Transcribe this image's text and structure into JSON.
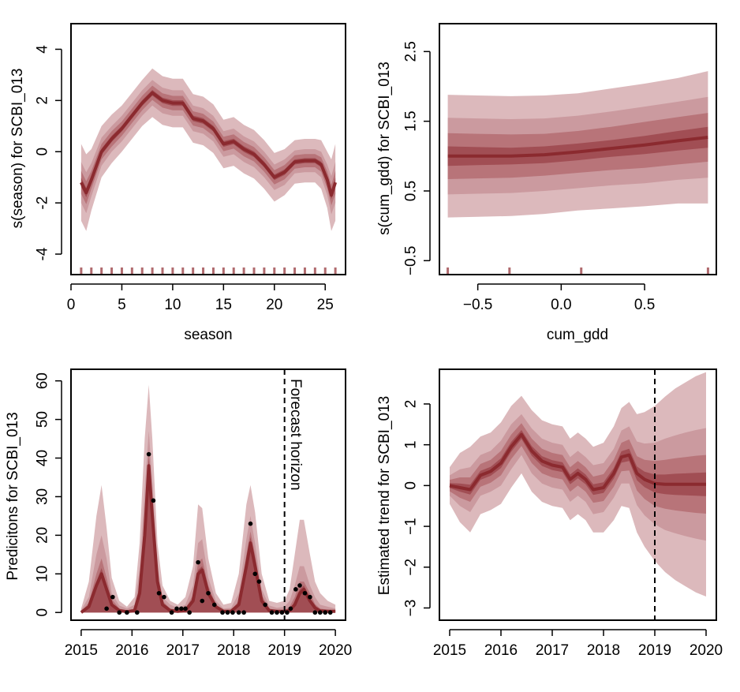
{
  "colors": {
    "band_outer": "#dcb9bc",
    "band_2": "#cb9a9f",
    "band_3": "#b87479",
    "band_inner": "#a14e54",
    "median_line": "#8b2a2f",
    "rug": "#b06a6e",
    "obs_points": "#000000"
  },
  "chart_data": [
    {
      "id": "season",
      "type": "area",
      "xlabel": "season",
      "ylabel": "s(season) for SCBI_013",
      "xlim": [
        0,
        27
      ],
      "ylim": [
        -4.8,
        5.0
      ],
      "xticks": [
        0,
        5,
        10,
        15,
        20,
        25
      ],
      "yticks": [
        -4,
        -2,
        0,
        2,
        4
      ],
      "x": [
        1,
        1.5,
        2,
        3,
        4,
        5,
        6,
        7,
        8,
        9,
        10,
        11,
        12,
        13,
        14,
        15,
        16,
        17,
        18,
        19,
        20,
        21,
        22,
        23,
        24,
        24.6,
        25.2,
        25.6,
        26
      ],
      "median": [
        -1.2,
        -1.6,
        -1.1,
        0.0,
        0.5,
        0.9,
        1.4,
        1.9,
        2.3,
        2.0,
        1.9,
        1.9,
        1.3,
        1.2,
        0.9,
        0.3,
        0.4,
        0.1,
        -0.1,
        -0.5,
        -1.0,
        -0.8,
        -0.4,
        -0.35,
        -0.35,
        -0.5,
        -1.1,
        -1.7,
        -1.2
      ],
      "halfwidths": [
        [
          1.5,
          1.5,
          1.2,
          1.0,
          0.95,
          0.9,
          0.9,
          0.9,
          0.95,
          0.95,
          0.95,
          0.95,
          0.95,
          0.95,
          0.95,
          0.95,
          0.95,
          0.95,
          0.95,
          0.95,
          0.95,
          0.9,
          0.85,
          0.85,
          0.85,
          0.95,
          1.1,
          1.4,
          1.5
        ],
        [
          0.8,
          0.8,
          0.65,
          0.55,
          0.5,
          0.5,
          0.5,
          0.5,
          0.5,
          0.5,
          0.5,
          0.5,
          0.5,
          0.5,
          0.5,
          0.5,
          0.5,
          0.5,
          0.5,
          0.5,
          0.5,
          0.5,
          0.45,
          0.45,
          0.45,
          0.5,
          0.6,
          0.75,
          0.8
        ],
        [
          0.45,
          0.45,
          0.35,
          0.3,
          0.3,
          0.28,
          0.28,
          0.28,
          0.28,
          0.28,
          0.28,
          0.28,
          0.28,
          0.28,
          0.28,
          0.28,
          0.28,
          0.28,
          0.28,
          0.28,
          0.28,
          0.28,
          0.26,
          0.26,
          0.26,
          0.28,
          0.33,
          0.4,
          0.45
        ],
        [
          0.18,
          0.18,
          0.14,
          0.12,
          0.12,
          0.11,
          0.11,
          0.11,
          0.11,
          0.11,
          0.11,
          0.11,
          0.11,
          0.11,
          0.11,
          0.11,
          0.11,
          0.11,
          0.11,
          0.11,
          0.11,
          0.11,
          0.1,
          0.1,
          0.1,
          0.11,
          0.13,
          0.16,
          0.18
        ]
      ],
      "rug": [
        1,
        2,
        3,
        4,
        5,
        6,
        7,
        8,
        9,
        10,
        11,
        12,
        13,
        14,
        15,
        16,
        17,
        18,
        19,
        20,
        21,
        22,
        23,
        24,
        25,
        26
      ]
    },
    {
      "id": "cum_gdd",
      "type": "area",
      "xlabel": "cum_gdd",
      "ylabel": "s(cum_gdd) for SCBI_013",
      "xlim": [
        -0.73,
        0.93
      ],
      "ylim": [
        -0.7,
        2.9
      ],
      "xticks": [
        -0.5,
        0.0,
        0.5
      ],
      "xticklabels": [
        "−0.5",
        "0.0",
        "0.5"
      ],
      "yticks": [
        -0.5,
        0.5,
        1.5,
        2.5
      ],
      "yticklabels": [
        "−0.5",
        "0.5",
        "1.5",
        "2.5"
      ],
      "x": [
        -0.68,
        -0.5,
        -0.3,
        -0.1,
        0.1,
        0.3,
        0.5,
        0.7,
        0.88
      ],
      "median": [
        1.0,
        1.0,
        1.0,
        1.02,
        1.06,
        1.11,
        1.16,
        1.22,
        1.27
      ],
      "halfwidths": [
        [
          0.88,
          0.87,
          0.86,
          0.85,
          0.84,
          0.86,
          0.88,
          0.9,
          0.95
        ],
        [
          0.55,
          0.54,
          0.53,
          0.52,
          0.52,
          0.53,
          0.55,
          0.56,
          0.58
        ],
        [
          0.33,
          0.32,
          0.31,
          0.3,
          0.3,
          0.31,
          0.33,
          0.34,
          0.35
        ],
        [
          0.14,
          0.13,
          0.12,
          0.12,
          0.12,
          0.12,
          0.13,
          0.14,
          0.15
        ]
      ],
      "rug": [
        -0.68,
        -0.31,
        0.12,
        0.88
      ]
    },
    {
      "id": "predictions",
      "type": "area",
      "xlabel": "",
      "ylabel": "Predicitons for SCBI_013",
      "annotation": "Forecast horizon",
      "vline": 2019.0,
      "xlim": [
        2014.8,
        2020.2
      ],
      "ylim": [
        -2,
        63
      ],
      "xticks": [
        2015,
        2016,
        2017,
        2018,
        2019,
        2020
      ],
      "yticks": [
        0,
        10,
        20,
        30,
        40,
        50,
        60
      ],
      "x": [
        2015.0,
        2015.15,
        2015.3,
        2015.4,
        2015.5,
        2015.6,
        2015.75,
        2015.9,
        2016.05,
        2016.15,
        2016.25,
        2016.33,
        2016.4,
        2016.5,
        2016.6,
        2016.75,
        2016.9,
        2017.05,
        2017.2,
        2017.3,
        2017.38,
        2017.5,
        2017.65,
        2017.8,
        2017.95,
        2018.1,
        2018.25,
        2018.33,
        2018.42,
        2018.55,
        2018.7,
        2018.85,
        2019.0,
        2019.1,
        2019.2,
        2019.3,
        2019.38,
        2019.5,
        2019.6,
        2019.7,
        2019.85,
        2020.0
      ],
      "median": [
        0,
        1.5,
        7,
        10,
        6,
        2,
        0.5,
        0.2,
        0.5,
        5,
        20,
        38,
        25,
        8,
        2,
        0.5,
        0.3,
        0.5,
        3,
        10,
        11,
        5,
        1.5,
        0.3,
        0.3,
        2,
        12,
        18,
        12,
        3,
        0.5,
        0.3,
        0.3,
        0.5,
        2,
        5,
        6,
        3,
        1.2,
        0.4,
        0.3,
        0.3
      ],
      "upper": [
        [
          1,
          8,
          25,
          33,
          22,
          9,
          3,
          1.5,
          4,
          18,
          45,
          59,
          45,
          18,
          7,
          3,
          2,
          4,
          12,
          28,
          27,
          14,
          5,
          2,
          2.5,
          10,
          28,
          33,
          26,
          10,
          3,
          2.5,
          3,
          6,
          15,
          24,
          24,
          15,
          8,
          5,
          3,
          2
        ],
        [
          0.6,
          4,
          15,
          20,
          14,
          5,
          1.8,
          1,
          2,
          11,
          32,
          47,
          34,
          12,
          4,
          2,
          1.2,
          2,
          7,
          18,
          19,
          9,
          3,
          1,
          1.2,
          5,
          19,
          25,
          18,
          6,
          1.8,
          1.2,
          1.5,
          3,
          7,
          12,
          12,
          7,
          4,
          2,
          1.5,
          1
        ],
        [
          0.3,
          2.5,
          10,
          14,
          9,
          3.5,
          1,
          0.5,
          1,
          7,
          25,
          42,
          29,
          10,
          3,
          1,
          0.7,
          1,
          4.5,
          13,
          14,
          7,
          2,
          0.6,
          0.6,
          3,
          15,
          21,
          15,
          4.5,
          1,
          0.6,
          0.6,
          1.5,
          4,
          8,
          8,
          5,
          2.2,
          1,
          0.7,
          0.5
        ],
        [
          0.1,
          2,
          8,
          11.5,
          7,
          2.5,
          0.7,
          0.3,
          0.7,
          6,
          22,
          40,
          27,
          9,
          2.5,
          0.7,
          0.4,
          0.7,
          3.5,
          11,
          12,
          6,
          1.7,
          0.4,
          0.4,
          2.5,
          13,
          19.5,
          13,
          3.5,
          0.7,
          0.4,
          0.4,
          0.8,
          2.8,
          6,
          7,
          3.8,
          1.6,
          0.6,
          0.4,
          0.4
        ]
      ],
      "observed": {
        "x": [
          2015.5,
          2015.62,
          2015.75,
          2015.9,
          2016.1,
          2016.33,
          2016.42,
          2016.53,
          2016.63,
          2016.78,
          2016.88,
          2016.97,
          2017.05,
          2017.13,
          2017.3,
          2017.38,
          2017.5,
          2017.62,
          2017.78,
          2017.88,
          2017.98,
          2018.1,
          2018.2,
          2018.33,
          2018.42,
          2018.5,
          2018.62,
          2018.75,
          2018.85,
          2018.95,
          2019.05,
          2019.12,
          2019.22,
          2019.3,
          2019.4,
          2019.5,
          2019.6,
          2019.7,
          2019.8,
          2019.9
        ],
        "y": [
          1,
          4,
          0,
          0,
          0,
          41,
          29,
          5,
          4,
          0,
          1,
          1,
          1,
          0,
          13,
          3,
          5,
          2,
          0,
          0,
          0,
          0,
          0,
          23,
          10,
          8,
          2,
          0,
          0,
          0,
          0,
          1,
          6,
          7,
          5,
          4,
          0,
          0,
          0,
          0
        ]
      }
    },
    {
      "id": "trend",
      "type": "area",
      "xlabel": "",
      "ylabel": "Estimated trend for SCBI_013",
      "vline": 2019.0,
      "xlim": [
        2014.8,
        2020.2
      ],
      "ylim": [
        -3.3,
        2.85
      ],
      "xticks": [
        2015,
        2016,
        2017,
        2018,
        2019,
        2020
      ],
      "yticks": [
        -3,
        -2,
        -1,
        0,
        1,
        2
      ],
      "yticklabels": [
        "−3",
        "−2",
        "−1",
        "0",
        "1",
        "2"
      ],
      "x": [
        2015.0,
        2015.2,
        2015.4,
        2015.6,
        2015.8,
        2016.0,
        2016.2,
        2016.4,
        2016.6,
        2016.8,
        2017.0,
        2017.2,
        2017.35,
        2017.5,
        2017.65,
        2017.8,
        2018.0,
        2018.2,
        2018.35,
        2018.5,
        2018.65,
        2018.8,
        2019.0,
        2019.2,
        2019.4,
        2019.6,
        2019.8,
        2020.0
      ],
      "median": [
        0.0,
        -0.05,
        -0.1,
        0.25,
        0.35,
        0.55,
        0.95,
        1.25,
        0.85,
        0.6,
        0.5,
        0.45,
        0.15,
        0.3,
        0.15,
        -0.1,
        -0.05,
        0.3,
        0.7,
        0.75,
        0.3,
        0.15,
        0.05,
        0.03,
        0.03,
        0.03,
        0.03,
        0.03
      ],
      "halfwidths": [
        [
          0.45,
          0.85,
          1.05,
          0.95,
          0.95,
          1.0,
          1.0,
          0.95,
          1.0,
          1.0,
          1.0,
          1.0,
          1.0,
          1.0,
          1.0,
          1.05,
          1.1,
          1.15,
          1.2,
          1.3,
          1.45,
          1.65,
          1.9,
          2.15,
          2.35,
          2.5,
          2.65,
          2.75
        ],
        [
          0.25,
          0.45,
          0.55,
          0.5,
          0.5,
          0.55,
          0.55,
          0.5,
          0.55,
          0.55,
          0.55,
          0.55,
          0.55,
          0.55,
          0.55,
          0.6,
          0.6,
          0.6,
          0.65,
          0.7,
          0.78,
          0.88,
          1.0,
          1.12,
          1.2,
          1.27,
          1.33,
          1.38
        ],
        [
          0.14,
          0.25,
          0.3,
          0.28,
          0.28,
          0.3,
          0.3,
          0.28,
          0.3,
          0.3,
          0.3,
          0.3,
          0.3,
          0.3,
          0.3,
          0.32,
          0.33,
          0.33,
          0.35,
          0.38,
          0.42,
          0.48,
          0.55,
          0.6,
          0.64,
          0.67,
          0.7,
          0.72
        ],
        [
          0.06,
          0.1,
          0.12,
          0.11,
          0.11,
          0.12,
          0.12,
          0.11,
          0.12,
          0.12,
          0.12,
          0.12,
          0.12,
          0.12,
          0.12,
          0.13,
          0.13,
          0.13,
          0.14,
          0.15,
          0.17,
          0.19,
          0.22,
          0.24,
          0.26,
          0.27,
          0.28,
          0.29
        ]
      ]
    }
  ]
}
